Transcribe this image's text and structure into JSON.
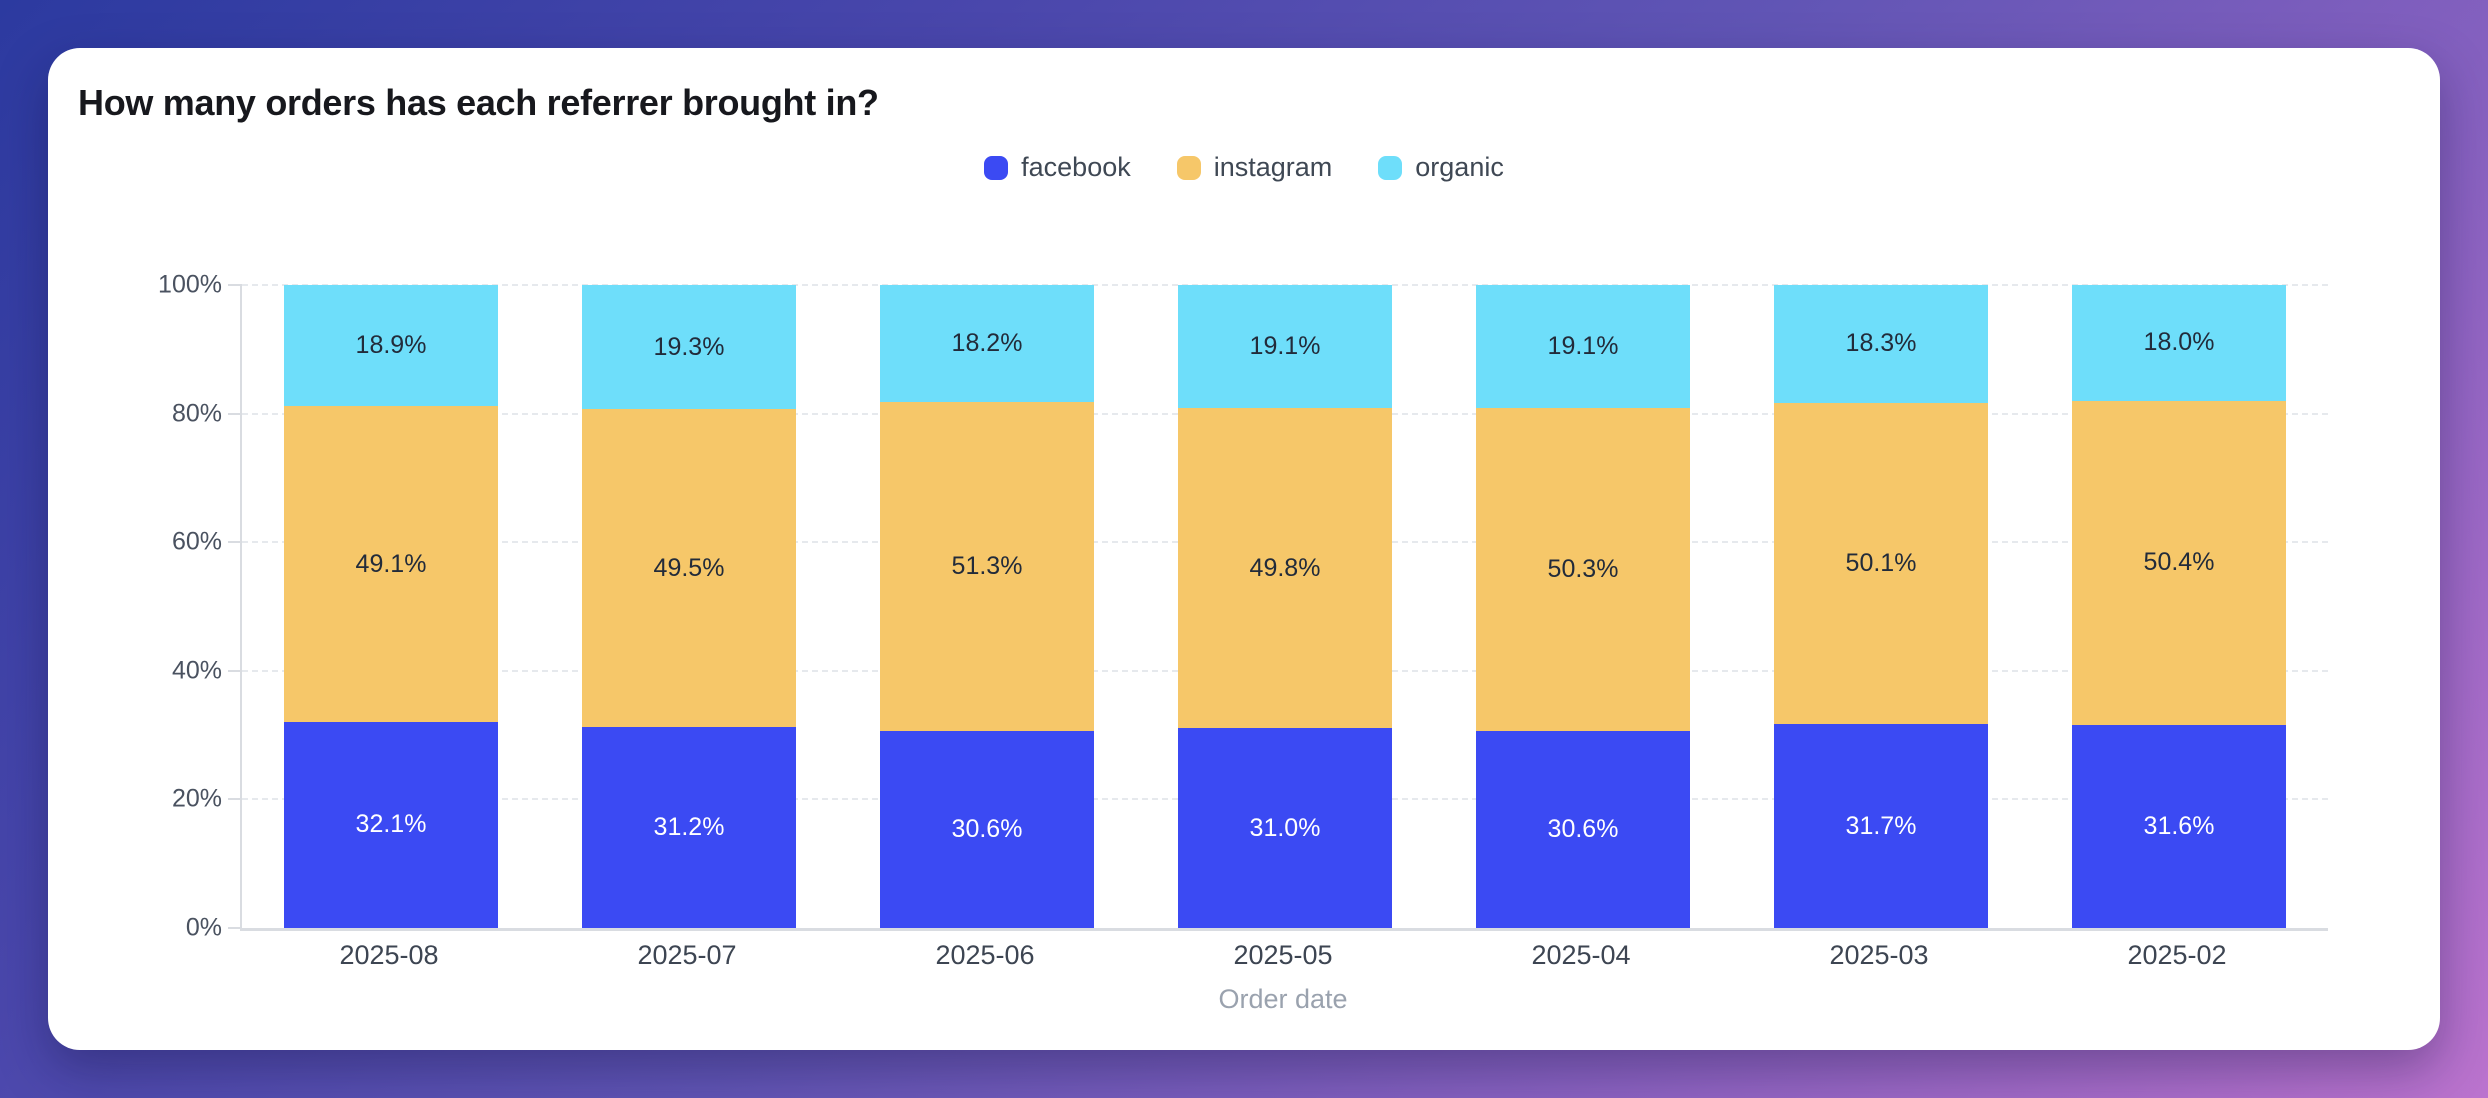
{
  "page": {
    "background_gradient": [
      "#2c3aa0",
      "#6155b5",
      "#bb73ce"
    ]
  },
  "card": {
    "title": "How many orders has each referrer brought in?",
    "background": "#ffffff"
  },
  "chart_data": {
    "type": "bar",
    "variant": "stacked-percent",
    "title": "How many orders has each referrer brought in?",
    "xlabel": "Order date",
    "ylabel": "",
    "ylim": [
      0,
      100
    ],
    "y_ticks": [
      "0%",
      "20%",
      "40%",
      "60%",
      "80%",
      "100%"
    ],
    "grid": "horizontal-dashed",
    "legend_position": "top-center",
    "categories": [
      "2025-08",
      "2025-07",
      "2025-06",
      "2025-05",
      "2025-04",
      "2025-03",
      "2025-02"
    ],
    "series": [
      {
        "name": "facebook",
        "color": "#3b4af3",
        "label_color": "#ffffff",
        "values": [
          32.1,
          31.2,
          30.6,
          31.0,
          30.6,
          31.7,
          31.6
        ]
      },
      {
        "name": "instagram",
        "color": "#f6c769",
        "label_color": "#222b3a",
        "values": [
          49.1,
          49.5,
          51.3,
          49.8,
          50.3,
          50.1,
          50.4
        ]
      },
      {
        "name": "organic",
        "color": "#6edefa",
        "label_color": "#222b3a",
        "values": [
          18.9,
          19.3,
          18.2,
          19.1,
          19.1,
          18.3,
          18.0
        ]
      }
    ],
    "value_suffix": "%",
    "axis_colors": {
      "grid": "#e6e9ed",
      "axis_line": "#d9dce1",
      "y_tick_label": "#4a5260",
      "x_tick_label": "#3d4552",
      "x_axis_title": "#9aa2ae"
    }
  }
}
